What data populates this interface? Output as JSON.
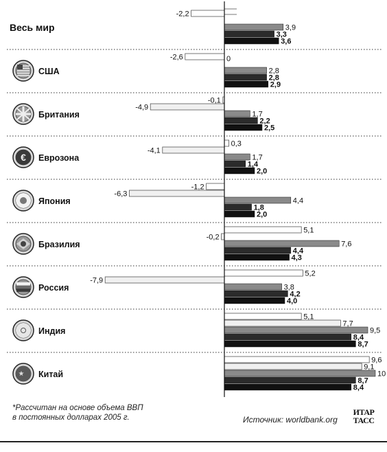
{
  "chart_data": {
    "type": "bar",
    "orientation": "horizontal",
    "categories": [
      "Весь мир",
      "США",
      "Британия",
      "Еврозона",
      "Япония",
      "Бразилия",
      "Россия",
      "Индия",
      "Китай"
    ],
    "series": [
      {
        "values": [
          -2.2,
          -2.6,
          -0.1,
          0.3,
          -1.2,
          5.1,
          5.2,
          5.1,
          9.6
        ],
        "labels": [
          "-2,2",
          "-2,6",
          "-0,1",
          "0,3",
          "-1,2",
          "5,1",
          "5,2",
          "5,1",
          "9,6"
        ],
        "color": "#ffffff"
      },
      {
        "values": [
          null,
          null,
          -4.9,
          -4.1,
          -6.3,
          -0.2,
          -7.9,
          7.7,
          9.1
        ],
        "labels": [
          "",
          "",
          "-4,9",
          "-4,1",
          "-6,3",
          "-0,2",
          "-7,9",
          "7,7",
          "9,1"
        ],
        "color": "#f0f0f0"
      },
      {
        "values": [
          3.9,
          2.8,
          1.7,
          1.7,
          4.4,
          7.6,
          3.8,
          9.5,
          10
        ],
        "labels": [
          "3,9",
          "2,8",
          "1,7",
          "1,7",
          "4,4",
          "7,6",
          "3,8",
          "9,5",
          "10"
        ],
        "color": "#8a8a8a"
      },
      {
        "values": [
          3.3,
          2.8,
          2.2,
          1.4,
          1.8,
          4.4,
          4.2,
          8.4,
          8.7
        ],
        "labels": [
          "3,3",
          "2,8",
          "2,2",
          "1,4",
          "1,8",
          "4,4",
          "4,2",
          "8,4",
          "8,7"
        ],
        "color": "#2b2b2b"
      },
      {
        "values": [
          3.6,
          2.9,
          2.5,
          2.0,
          2.0,
          4.3,
          4.0,
          8.7,
          8.4
        ],
        "labels": [
          "3,6",
          "2,9",
          "2,5",
          "2,0",
          "2,0",
          "4,3",
          "4,0",
          "8,7",
          "8,4"
        ],
        "color": "#111111"
      }
    ],
    "extra_labels": [
      {
        "category": "США",
        "text": "0"
      }
    ],
    "xlim": [
      -8.5,
      10.5
    ],
    "grid": false,
    "legend": "none"
  },
  "footnote": {
    "line1": "*Рассчитан на основе объема ВВП",
    "line2": "в постоянных долларах 2005 г."
  },
  "source": "Источник: worldbank.org",
  "agency": {
    "line1": "ИТАР",
    "line2": "ТАСС"
  },
  "icons": [
    "globe-icon",
    "usa-flag-icon",
    "uk-flag-icon",
    "eu-flag-icon",
    "japan-flag-icon",
    "brazil-flag-icon",
    "russia-flag-icon",
    "india-flag-icon",
    "china-flag-icon"
  ]
}
